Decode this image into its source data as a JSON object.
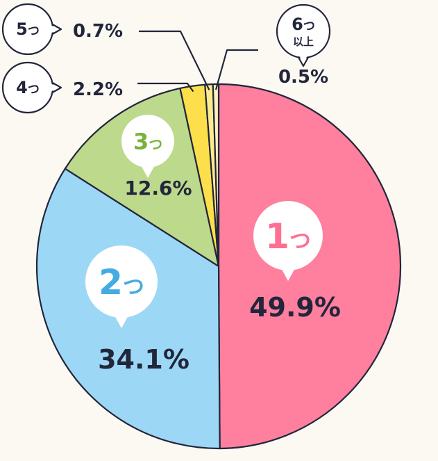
{
  "chart_data": {
    "type": "pie",
    "slices": [
      {
        "label": "1つ",
        "label_main": "1",
        "label_suffix": "つ",
        "value": 49.9,
        "display": "49.9%",
        "color": "#ff7f9e",
        "label_color": "#ff6f92"
      },
      {
        "label": "2つ",
        "label_main": "2",
        "label_suffix": "つ",
        "value": 34.1,
        "display": "34.1%",
        "color": "#9dd7f6",
        "label_color": "#45abe3"
      },
      {
        "label": "3つ",
        "label_main": "3",
        "label_suffix": "つ",
        "value": 12.6,
        "display": "12.6%",
        "color": "#bcd98c",
        "label_color": "#7ab33c"
      },
      {
        "label": "4つ",
        "label_main": "4",
        "label_suffix": "つ",
        "value": 2.2,
        "display": "2.2%",
        "color": "#fcdf4a",
        "label_color": "#22263a"
      },
      {
        "label": "5つ",
        "label_main": "5",
        "label_suffix": "つ",
        "value": 0.7,
        "display": "0.7%",
        "color": "#fdeb8f",
        "label_color": "#22263a"
      },
      {
        "label": "6つ以上",
        "label_main": "6",
        "label_suffix": "つ",
        "label_sub": "以上",
        "value": 0.5,
        "display": "0.5%",
        "color": "#fdf3c2",
        "label_color": "#22263a"
      }
    ],
    "start_angle_deg": 0,
    "direction": "clockwise",
    "outline_color": "#22263a",
    "text_color": "#22263a"
  }
}
